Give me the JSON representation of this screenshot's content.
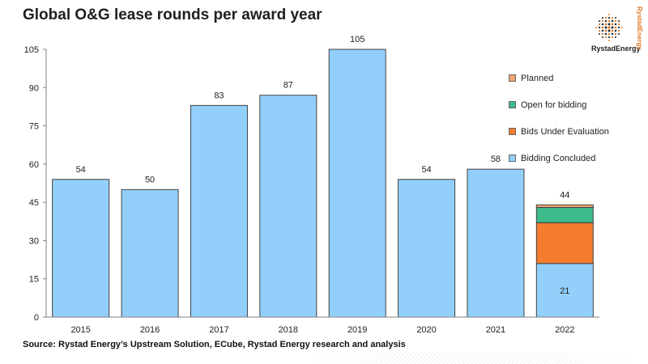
{
  "title": "Global O&G lease rounds per award year",
  "logo": {
    "name": "RystadEnergy",
    "vertical": "RystadEnergy"
  },
  "source": "Source: Rystad Energy’s Upstream Solution,  ECube, Rystad Energy research and analysis",
  "colors": {
    "planned": "#f4a574",
    "open": "#3dbb8a",
    "evaluation": "#f47c2f",
    "concluded": "#92d0fb",
    "axis": "#808080",
    "grid": "#d0d0d0"
  },
  "chart_data": {
    "type": "bar",
    "stacked": true,
    "categories": [
      "2015",
      "2016",
      "2017",
      "2018",
      "2019",
      "2020",
      "2021",
      "2022"
    ],
    "series": [
      {
        "name": "Bidding Concluded",
        "values": [
          54,
          50,
          83,
          87,
          105,
          54,
          58,
          21
        ]
      },
      {
        "name": "Bids Under Evaluation",
        "values": [
          0,
          0,
          0,
          0,
          0,
          0,
          0,
          16
        ]
      },
      {
        "name": "Open for bidding",
        "values": [
          0,
          0,
          0,
          0,
          0,
          0,
          0,
          6
        ]
      },
      {
        "name": "Planned",
        "values": [
          0,
          0,
          0,
          0,
          0,
          0,
          0,
          1
        ]
      }
    ],
    "totals": [
      54,
      50,
      83,
      87,
      105,
      54,
      58,
      44
    ],
    "inner_labels": [
      null,
      null,
      null,
      null,
      null,
      null,
      null,
      21
    ],
    "yticks": [
      0,
      15,
      30,
      45,
      60,
      75,
      90,
      105
    ],
    "ylim": [
      0,
      105
    ],
    "grid": false,
    "legend": {
      "position": "right",
      "items": [
        "Planned",
        "Open for bidding",
        "Bids Under Evaluation",
        "Bidding Concluded"
      ]
    }
  }
}
